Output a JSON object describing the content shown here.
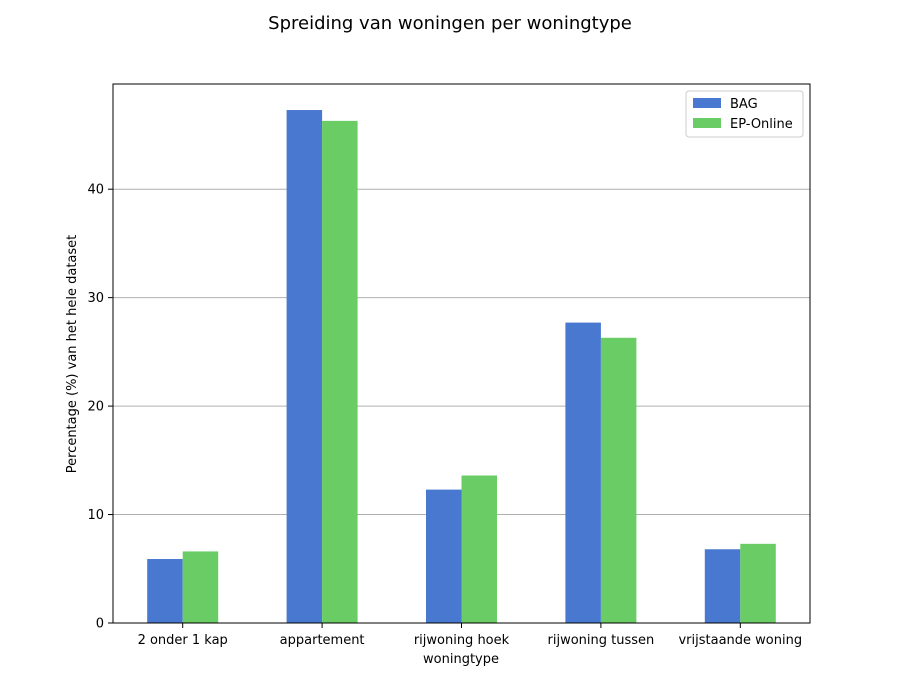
{
  "chart_data": {
    "type": "bar",
    "title": "Spreiding van woningen per woningtype",
    "xlabel": "woningtype",
    "ylabel": "Percentage (%) van het hele dataset",
    "categories": [
      "2 onder 1 kap",
      "appartement",
      "rijwoning hoek",
      "rijwoning tussen",
      "vrijstaande woning"
    ],
    "series": [
      {
        "name": "BAG",
        "color": "#4878d0",
        "values": [
          5.9,
          47.3,
          12.3,
          27.7,
          6.8
        ]
      },
      {
        "name": "EP-Online",
        "color": "#6acc64",
        "values": [
          6.6,
          46.3,
          13.6,
          26.3,
          7.3
        ]
      }
    ],
    "ylim": [
      0,
      49.7
    ],
    "yticks": [
      0,
      10,
      20,
      30,
      40
    ],
    "grid": "y",
    "legend": "top-right"
  }
}
